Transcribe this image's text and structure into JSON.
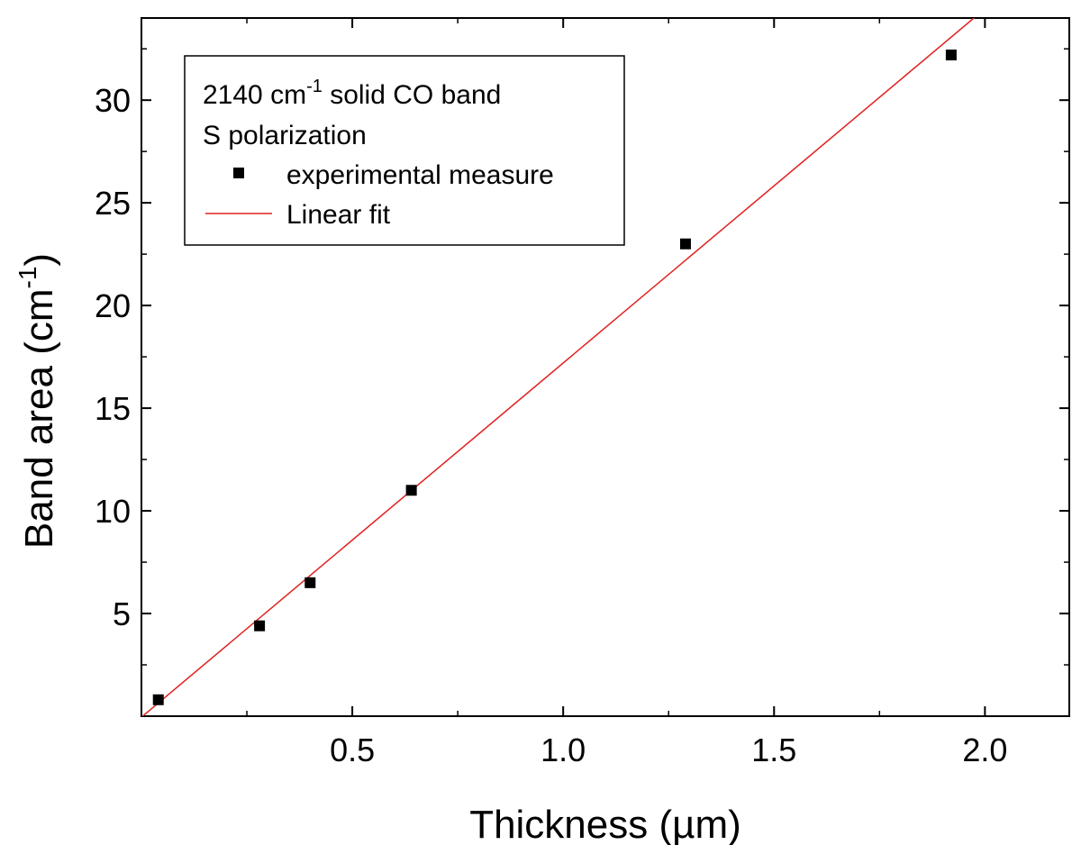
{
  "chart_data": {
    "type": "scatter",
    "xlabel": {
      "main": "Thickness (",
      "unit": "µm",
      "end": ")"
    },
    "ylabel": {
      "main": "Band area (cm",
      "sup": "-1",
      "end": ")"
    },
    "xlim": [
      0,
      2.2
    ],
    "ylim": [
      0,
      34
    ],
    "x_ticks": [
      {
        "value": 0.5,
        "label": "0.5"
      },
      {
        "value": 1.0,
        "label": "1.0"
      },
      {
        "value": 1.5,
        "label": "1.5"
      },
      {
        "value": 2.0,
        "label": "2.0"
      }
    ],
    "y_ticks": [
      {
        "value": 5,
        "label": "5"
      },
      {
        "value": 10,
        "label": "10"
      },
      {
        "value": 15,
        "label": "15"
      },
      {
        "value": 20,
        "label": "20"
      },
      {
        "value": 25,
        "label": "25"
      },
      {
        "value": 30,
        "label": "30"
      }
    ],
    "x_minor_ticks": [
      0.25,
      0.75,
      1.25,
      1.75
    ],
    "y_minor_ticks": [
      2.5,
      7.5,
      12.5,
      17.5,
      22.5,
      27.5,
      32.5
    ],
    "grid": false,
    "legend": {
      "position": "top-left",
      "title_line1_main": "2140 cm",
      "title_line1_sup": "-1",
      "title_line1_end": " solid CO band",
      "title_line2": "S polarization",
      "entries": [
        {
          "name": "experimental measure",
          "marker": "square",
          "color": "#000000"
        },
        {
          "name": "Linear fit",
          "marker": "line",
          "color": "#e02020"
        }
      ]
    },
    "series": [
      {
        "name": "experimental measure",
        "kind": "points",
        "color": "#000000",
        "points": [
          {
            "x": 0.04,
            "y": 0.8
          },
          {
            "x": 0.28,
            "y": 4.4
          },
          {
            "x": 0.4,
            "y": 6.5
          },
          {
            "x": 0.64,
            "y": 11.0
          },
          {
            "x": 1.29,
            "y": 23.0
          },
          {
            "x": 1.92,
            "y": 32.2
          }
        ]
      },
      {
        "name": "Linear fit",
        "kind": "line",
        "color": "#e02020",
        "slope": 17.25,
        "intercept": -0.05
      }
    ]
  }
}
